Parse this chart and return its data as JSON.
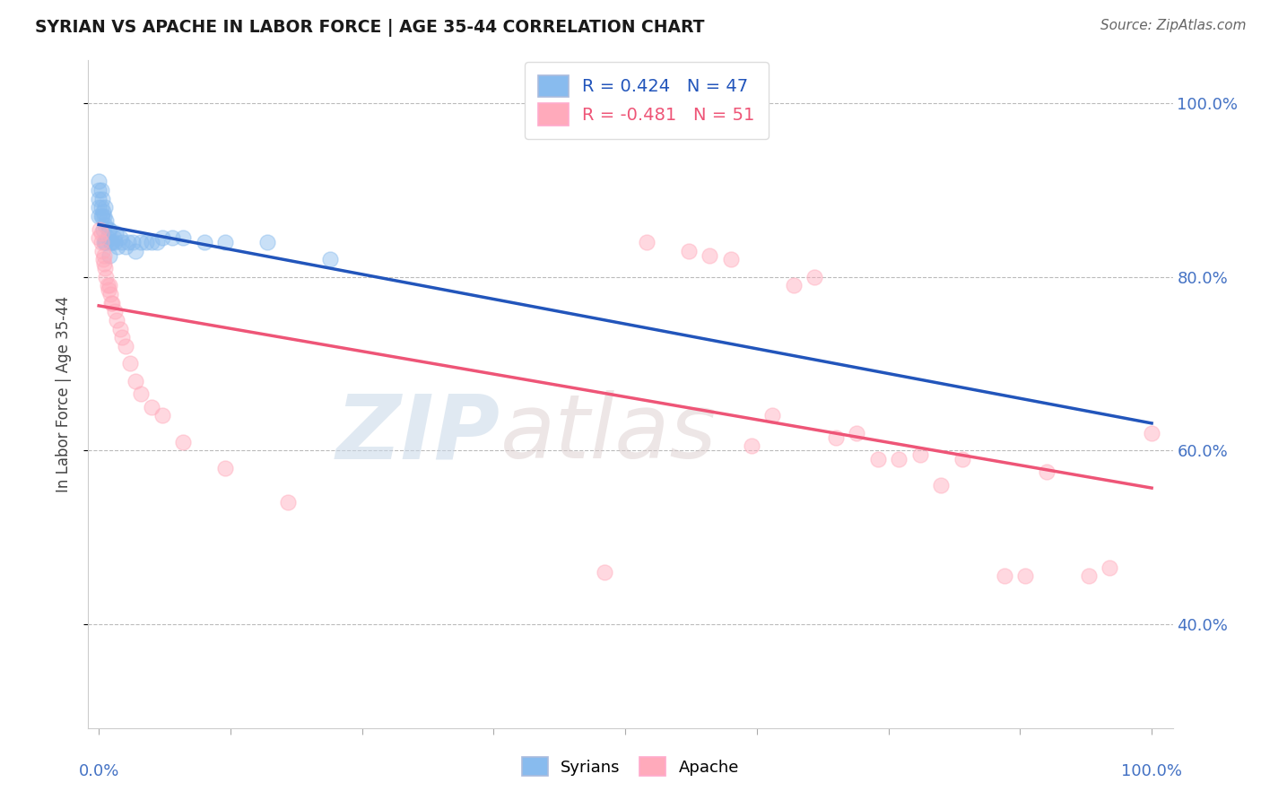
{
  "title": "SYRIAN VS APACHE IN LABOR FORCE | AGE 35-44 CORRELATION CHART",
  "source": "Source: ZipAtlas.com",
  "ylabel": "In Labor Force | Age 35-44",
  "legend_syrians": "Syrians",
  "legend_apache": "Apache",
  "r_syrians": 0.424,
  "n_syrians": 47,
  "r_apache": -0.481,
  "n_apache": 51,
  "syrians_color": "#88bbee",
  "apache_color": "#ffaabb",
  "syrians_line_color": "#2255bb",
  "apache_line_color": "#ee5577",
  "background_color": "#ffffff",
  "watermark_zip": "ZIP",
  "watermark_atlas": "atlas",
  "grid_color": "#bbbbbb",
  "right_axis_color": "#4472c4",
  "syrians_x": [
    0.0,
    0.0,
    0.0,
    0.0,
    0.0,
    0.002,
    0.002,
    0.002,
    0.003,
    0.003,
    0.004,
    0.004,
    0.005,
    0.005,
    0.006,
    0.006,
    0.006,
    0.007,
    0.007,
    0.008,
    0.009,
    0.01,
    0.01,
    0.011,
    0.012,
    0.013,
    0.014,
    0.015,
    0.016,
    0.018,
    0.02,
    0.022,
    0.025,
    0.028,
    0.032,
    0.035,
    0.04,
    0.045,
    0.05,
    0.055,
    0.06,
    0.07,
    0.08,
    0.1,
    0.12,
    0.16,
    0.22
  ],
  "syrians_y": [
    0.87,
    0.88,
    0.89,
    0.9,
    0.91,
    0.87,
    0.88,
    0.9,
    0.87,
    0.89,
    0.855,
    0.875,
    0.84,
    0.87,
    0.84,
    0.86,
    0.88,
    0.84,
    0.865,
    0.845,
    0.855,
    0.825,
    0.855,
    0.84,
    0.84,
    0.84,
    0.845,
    0.84,
    0.85,
    0.835,
    0.845,
    0.84,
    0.835,
    0.84,
    0.84,
    0.83,
    0.84,
    0.84,
    0.84,
    0.84,
    0.845,
    0.845,
    0.845,
    0.84,
    0.84,
    0.84,
    0.82
  ],
  "apache_x": [
    0.0,
    0.001,
    0.002,
    0.002,
    0.003,
    0.004,
    0.005,
    0.005,
    0.006,
    0.007,
    0.008,
    0.009,
    0.01,
    0.011,
    0.012,
    0.013,
    0.015,
    0.017,
    0.02,
    0.022,
    0.025,
    0.03,
    0.035,
    0.04,
    0.05,
    0.06,
    0.08,
    0.12,
    0.18,
    0.48,
    0.52,
    0.56,
    0.58,
    0.6,
    0.62,
    0.64,
    0.66,
    0.68,
    0.7,
    0.72,
    0.74,
    0.76,
    0.78,
    0.8,
    0.82,
    0.86,
    0.88,
    0.9,
    0.94,
    0.96,
    1.0
  ],
  "apache_y": [
    0.845,
    0.855,
    0.84,
    0.85,
    0.83,
    0.82,
    0.815,
    0.825,
    0.81,
    0.8,
    0.79,
    0.785,
    0.79,
    0.78,
    0.77,
    0.77,
    0.76,
    0.75,
    0.74,
    0.73,
    0.72,
    0.7,
    0.68,
    0.665,
    0.65,
    0.64,
    0.61,
    0.58,
    0.54,
    0.46,
    0.84,
    0.83,
    0.825,
    0.82,
    0.605,
    0.64,
    0.79,
    0.8,
    0.615,
    0.62,
    0.59,
    0.59,
    0.595,
    0.56,
    0.59,
    0.455,
    0.455,
    0.575,
    0.455,
    0.465,
    0.62
  ],
  "xlim": [
    0.0,
    1.0
  ],
  "ylim": [
    0.28,
    1.05
  ],
  "ytick_vals": [
    1.0,
    0.8,
    0.6,
    0.4
  ],
  "ytick_labels": [
    "100.0%",
    "80.0%",
    "60.0%",
    "40.0%"
  ]
}
